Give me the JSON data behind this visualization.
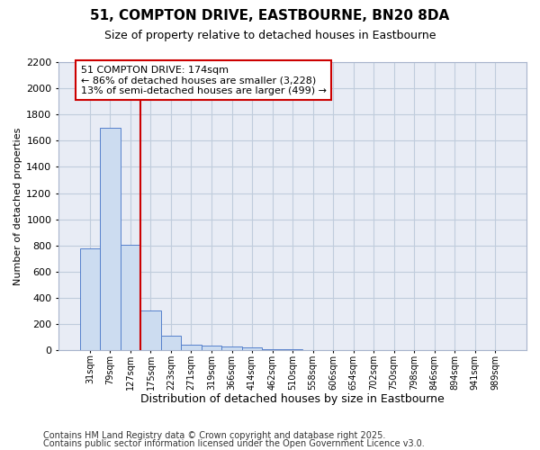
{
  "title_line1": "51, COMPTON DRIVE, EASTBOURNE, BN20 8DA",
  "title_line2": "Size of property relative to detached houses in Eastbourne",
  "xlabel": "Distribution of detached houses by size in Eastbourne",
  "ylabel": "Number of detached properties",
  "categories": [
    "31sqm",
    "79sqm",
    "127sqm",
    "175sqm",
    "223sqm",
    "271sqm",
    "319sqm",
    "366sqm",
    "414sqm",
    "462sqm",
    "510sqm",
    "558sqm",
    "606sqm",
    "654sqm",
    "702sqm",
    "750sqm",
    "798sqm",
    "846sqm",
    "894sqm",
    "941sqm",
    "989sqm"
  ],
  "values": [
    775,
    1700,
    805,
    305,
    115,
    45,
    35,
    30,
    20,
    8,
    8,
    0,
    0,
    0,
    0,
    0,
    0,
    0,
    0,
    0,
    0
  ],
  "bar_color": "#ccdcf0",
  "bar_edge_color": "#5580cc",
  "annotation_text_line1": "51 COMPTON DRIVE: 174sqm",
  "annotation_text_line2": "← 86% of detached houses are smaller (3,228)",
  "annotation_text_line3": "13% of semi-detached houses are larger (499) →",
  "vline_color": "#cc0000",
  "vline_x": 2.5,
  "ylim_max": 2200,
  "yticks": [
    0,
    200,
    400,
    600,
    800,
    1000,
    1200,
    1400,
    1600,
    1800,
    2000,
    2200
  ],
  "grid_color": "#c0ccdc",
  "background_color": "#e8ecf5",
  "footnote1": "Contains HM Land Registry data © Crown copyright and database right 2025.",
  "footnote2": "Contains public sector information licensed under the Open Government Licence v3.0.",
  "title_fontsize": 11,
  "subtitle_fontsize": 9,
  "annot_fontsize": 8,
  "footnote_fontsize": 7
}
